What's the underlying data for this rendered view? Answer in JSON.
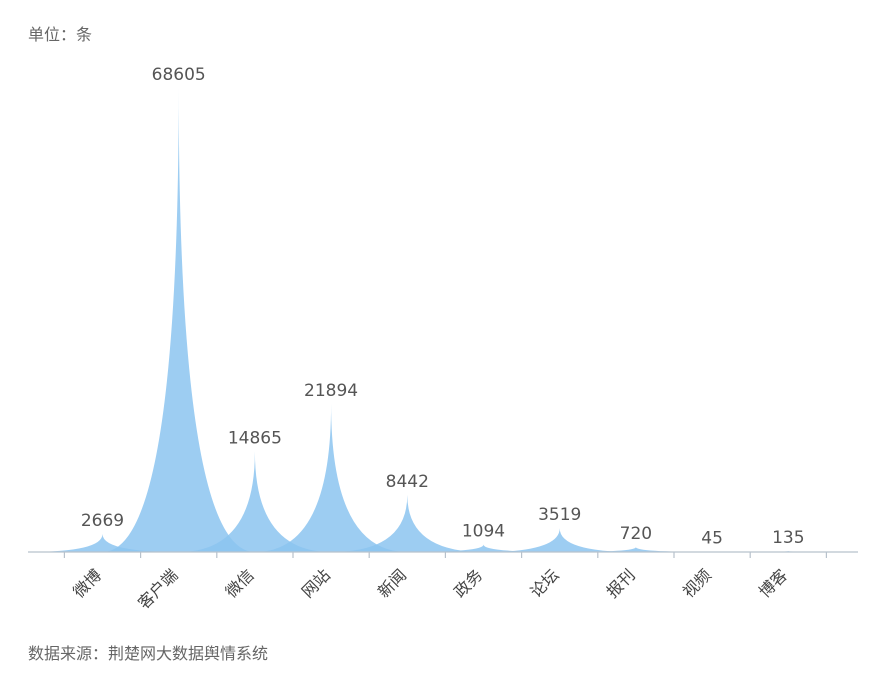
{
  "unit_label": "单位：条",
  "source_label": "数据来源：荆楚网大数据舆情系统",
  "chart_data": {
    "type": "area",
    "categories": [
      "微博",
      "客户端",
      "微信",
      "网站",
      "新闻",
      "政务",
      "论坛",
      "报刊",
      "视频",
      "博客"
    ],
    "values": [
      2669,
      68605,
      14865,
      21894,
      8442,
      1094,
      3519,
      720,
      45,
      135
    ],
    "ylim": [
      0,
      70000
    ],
    "grid": false,
    "legend": "none",
    "colors": {
      "fill": "#8cc4f0",
      "axis": "#b8c2cc",
      "label": "#555555"
    }
  }
}
